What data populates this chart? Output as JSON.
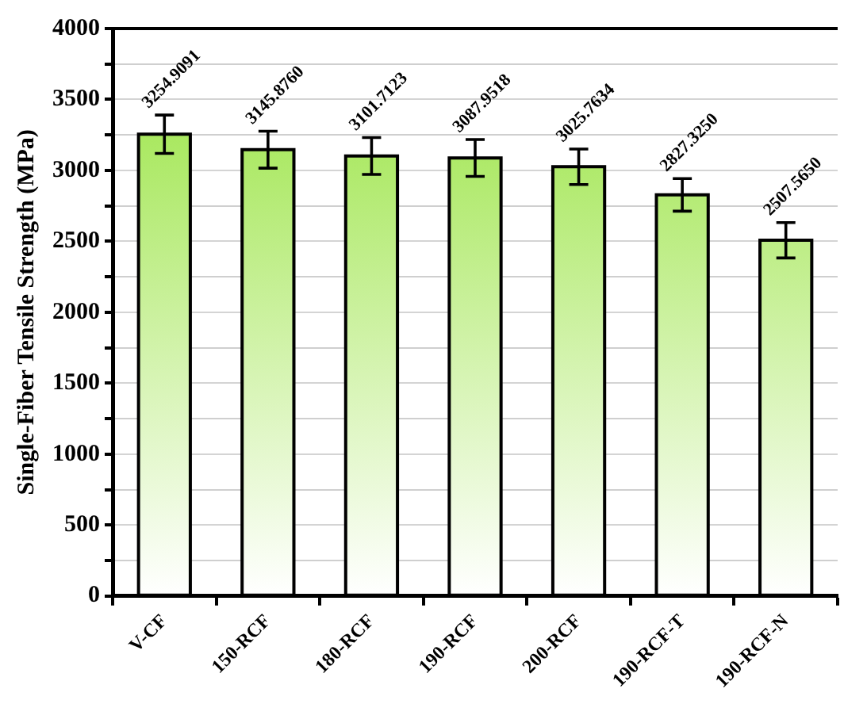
{
  "chart_data": {
    "type": "bar",
    "ylabel": "Single-Fiber Tensile Strength (MPa)",
    "categories": [
      "V-CF",
      "150-RCF",
      "180-RCF",
      "190-RCF",
      "200-RCF",
      "190-RCF-T",
      "190-RCF-N"
    ],
    "values": [
      3254.9091,
      3145.876,
      3101.7123,
      3087.9518,
      3025.7634,
      2827.325,
      2507.565
    ],
    "value_labels": [
      "3254.9091",
      "3145.8760",
      "3101.7123",
      "3087.9518",
      "3025.7634",
      "2827.3250",
      "2507.5650"
    ],
    "errors": [
      135,
      130,
      130,
      130,
      125,
      115,
      125
    ],
    "color": "#96e33c",
    "ylim": [
      0,
      4000
    ],
    "yticks": [
      0,
      {
        "value": 250,
        "label": null
      },
      500,
      {
        "value": 750,
        "label": null
      },
      1000,
      {
        "value": 1250,
        "label": null
      },
      1500,
      {
        "value": 1750,
        "label": null
      },
      2000,
      {
        "value": 2250,
        "label": null
      },
      2500,
      {
        "value": 2750,
        "label": null
      },
      3000,
      {
        "value": 3250,
        "label": null
      },
      3500,
      {
        "value": 3750,
        "label": null
      },
      4000
    ],
    "grid": true,
    "legend": false
  }
}
